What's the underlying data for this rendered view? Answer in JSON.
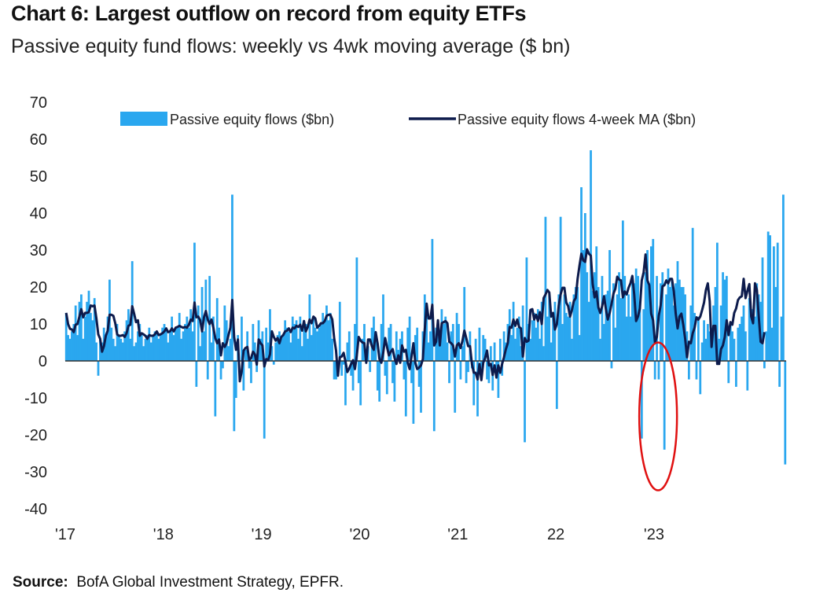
{
  "chart_data": {
    "type": "bar",
    "title": "Chart 6: Largest outflow on record from equity ETFs",
    "subtitle": "Passive equity fund flows: weekly vs 4wk moving average ($ bn)",
    "xlabel": "",
    "ylabel": "",
    "ylim": [
      -40,
      70
    ],
    "yticks": [
      70,
      60,
      50,
      40,
      30,
      20,
      10,
      0,
      -10,
      -20,
      -30,
      -40
    ],
    "xticks": [
      {
        "label": "'17",
        "year": 2017
      },
      {
        "label": "'18",
        "year": 2018
      },
      {
        "label": "'19",
        "year": 2019
      },
      {
        "label": "'20",
        "year": 2020
      },
      {
        "label": "'21",
        "year": 2021
      },
      {
        "label": "22",
        "year": 2022
      },
      {
        "label": "'23",
        "year": 2023
      }
    ],
    "x_start_year": 2017,
    "weeks_per_year": 52,
    "legend": {
      "position": "top",
      "bar_series": "Passive equity flows ($bn)",
      "line_series": "Passive equity flows 4-week MA ($bn)"
    },
    "colors": {
      "bars": "#2aa7ef",
      "line": "#0d1b4c",
      "highlight": "#e01010",
      "axis": "#333333"
    },
    "annotation": {
      "type": "ellipse",
      "description": "highlight",
      "week": 312,
      "value_center": -15,
      "value_halfrange": 20
    },
    "series": [
      {
        "name": "Passive equity flows ($bn)",
        "kind": "bar",
        "values": [
          13,
          7,
          6,
          8,
          10,
          15,
          7,
          16,
          18,
          6,
          12,
          16,
          19,
          13,
          11,
          17,
          5,
          -4,
          6,
          5,
          9,
          7,
          12,
          22,
          9,
          6,
          4,
          10,
          7,
          6,
          5,
          8,
          11,
          14,
          6,
          27,
          4,
          5,
          8,
          10,
          7,
          4,
          6,
          7,
          9,
          5,
          7,
          8,
          8,
          6,
          7,
          9,
          10,
          9,
          5,
          8,
          12,
          7,
          9,
          9,
          13,
          6,
          8,
          10,
          12,
          9,
          14,
          8,
          32,
          -7,
          15,
          4,
          20,
          8,
          22,
          -5,
          23,
          5,
          12,
          -15,
          17,
          9,
          -5,
          -2,
          15,
          11,
          4,
          6,
          45,
          -19,
          -10,
          7,
          0,
          12,
          -8,
          3,
          8,
          -2,
          -6,
          10,
          5,
          -3,
          11,
          6,
          8,
          -21,
          9,
          5,
          14,
          4,
          -1,
          5,
          7,
          8,
          6,
          7,
          11,
          9,
          8,
          5,
          12,
          10,
          11,
          6,
          12,
          4,
          11,
          10,
          6,
          18,
          7,
          12,
          9,
          8,
          9,
          10,
          13,
          11,
          15,
          11,
          13,
          6,
          -5,
          -5,
          -2,
          16,
          -4,
          -1,
          -12,
          5,
          8,
          -4,
          -8,
          10,
          28,
          -6,
          -12,
          6,
          10,
          3,
          4,
          -3,
          9,
          12,
          7,
          -8,
          -11,
          10,
          18,
          -4,
          -9,
          9,
          10,
          -6,
          -11,
          8,
          3,
          6,
          8,
          -5,
          -15,
          9,
          12,
          -6,
          -17,
          7,
          9,
          -7,
          -14,
          8,
          18,
          15,
          5,
          8,
          33,
          -19,
          9,
          11,
          7,
          14,
          10,
          12,
          5,
          -6,
          8,
          10,
          -14,
          13,
          10,
          -5,
          4,
          20,
          -6,
          -3,
          8,
          -2,
          -12,
          6,
          -15,
          9,
          -3,
          7,
          6,
          -5,
          -6,
          4,
          -8,
          5,
          -4,
          -10,
          6,
          -4,
          8,
          5,
          10,
          14,
          7,
          16,
          6,
          9,
          12,
          4,
          15,
          -22,
          28,
          10,
          6,
          11,
          13,
          9,
          14,
          6,
          16,
          4,
          39,
          12,
          18,
          5,
          13,
          16,
          -13,
          18,
          39,
          10,
          18,
          13,
          12,
          16,
          6,
          18,
          20,
          20,
          7,
          47,
          30,
          40,
          24,
          16,
          57,
          19,
          24,
          31,
          20,
          6,
          23,
          10,
          18,
          19,
          30,
          -2,
          21,
          9,
          18,
          24,
          17,
          38,
          23,
          12,
          18,
          12,
          23,
          21,
          25,
          23,
          15,
          -21,
          14,
          24,
          30,
          21,
          31,
          33,
          -5,
          23,
          -5,
          21,
          24,
          -24,
          18,
          25,
          20,
          22,
          15,
          21,
          27,
          22,
          20,
          20,
          18,
          8,
          -5,
          15,
          36,
          13,
          -5,
          12,
          -9,
          5,
          11,
          6,
          10,
          8,
          8,
          15,
          20,
          32,
          6,
          15,
          24,
          22,
          23,
          -6,
          10,
          8,
          6,
          -7,
          9,
          10,
          12,
          15,
          8,
          -8,
          17,
          14,
          14,
          12,
          21,
          18,
          16,
          28,
          -2,
          8,
          35,
          34,
          9,
          31,
          20,
          32,
          -7,
          12,
          45,
          -28
        ]
      },
      {
        "name": "Passive equity flows 4-week MA ($bn)",
        "kind": "line",
        "values": [
          13.0,
          10.0,
          8.7,
          8.5,
          7.8,
          9.8,
          10.0,
          12.0,
          14.0,
          11.8,
          13.0,
          13.0,
          13.2,
          15.0,
          14.8,
          15.0,
          11.5,
          7.2,
          6.0,
          2.5,
          4.0,
          6.8,
          8.2,
          12.5,
          12.5,
          12.2,
          10.2,
          7.2,
          6.8,
          6.8,
          7.0,
          6.5,
          7.5,
          9.5,
          9.8,
          14.8,
          12.8,
          10.5,
          11.0,
          6.8,
          7.5,
          7.2,
          6.8,
          6.0,
          7.0,
          6.8,
          6.8,
          7.2,
          8.0,
          7.0,
          7.2,
          7.5,
          8.0,
          8.8,
          7.8,
          8.0,
          8.8,
          8.0,
          9.0,
          9.2,
          9.5,
          9.2,
          9.0,
          9.2,
          9.0,
          9.8,
          11.2,
          10.8,
          15.8,
          11.8,
          12.0,
          11.0,
          8.0,
          11.8,
          13.5,
          11.2,
          10.0,
          11.2,
          9.0,
          6.2,
          4.8,
          5.8,
          1.5,
          4.8,
          3.8,
          4.8,
          7.0,
          9.0,
          16.5,
          6.5,
          3.0,
          5.8,
          -5.5,
          -2.8,
          2.8,
          3.5,
          3.8,
          0.2,
          0.8,
          2.5,
          1.8,
          -1.0,
          5.8,
          4.8,
          4.2,
          -1.5,
          0.5,
          0.2,
          1.8,
          8.0,
          6.5,
          5.5,
          6.2,
          4.8,
          6.5,
          7.0,
          8.0,
          8.2,
          8.8,
          7.8,
          9.0,
          8.8,
          9.5,
          9.2,
          9.8,
          8.2,
          10.8,
          8.0,
          9.2,
          11.2,
          10.2,
          12.0,
          11.5,
          9.0,
          9.5,
          10.2,
          10.2,
          10.8,
          12.2,
          12.5,
          12.5,
          11.2,
          6.2,
          2.8,
          -4.0,
          1.0,
          1.2,
          2.2,
          -0.2,
          -3.0,
          -2.0,
          -0.8,
          0.2,
          -2.2,
          1.5,
          6.5,
          5.5,
          5.0,
          4.8,
          -0.5,
          5.8,
          5.8,
          4.0,
          3.0,
          7.8,
          4.8,
          0.5,
          -0.5,
          2.2,
          6.2,
          3.8,
          1.5,
          2.5,
          3.2,
          0.8,
          -0.8,
          1.5,
          -0.5,
          4.2,
          2.5,
          3.0,
          -0.5,
          -2.2,
          1.2,
          4.8,
          -0.5,
          -2.2,
          -1.8,
          -1.2,
          0.5,
          8.5,
          15.5,
          11.5,
          11.5,
          15.2,
          4.2,
          5.2,
          11.0,
          4.2,
          10.2,
          10.5,
          10.8,
          10.2,
          5.2,
          4.8,
          4.2,
          1.2,
          4.2,
          4.8,
          3.5,
          5.5,
          8.2,
          6.2,
          4.0,
          4.0,
          -0.8,
          -3.2,
          -3.2,
          -5.0,
          -0.8,
          -5.2,
          -0.5,
          0.8,
          2.8,
          -1.2,
          -0.8,
          -3.8,
          -1.2,
          -4.5,
          -1.2,
          -3.2,
          -0.8,
          1.0,
          3.2,
          4.8,
          9.2,
          9.0,
          11.2,
          9.5,
          11.2,
          9.2,
          8.8,
          1.2,
          6.2,
          5.2,
          5.5,
          13.8,
          14.0,
          11.2,
          12.5,
          10.8,
          13.2,
          10.0,
          17.0,
          18.0,
          19.2,
          18.5,
          12.0,
          13.0,
          8.5,
          10.0,
          15.0,
          18.0,
          19.8,
          19.8,
          15.8,
          14.8,
          12.0,
          13.8,
          16.2,
          17.0,
          22.2,
          25.8,
          29.0,
          27.2,
          26.8,
          30.2,
          29.0,
          28.5,
          20.8,
          17.2,
          18.8,
          14.5,
          13.0,
          14.8,
          17.5,
          14.0,
          11.2,
          13.0,
          15.5,
          18.2,
          19.5,
          22.8,
          22.0,
          21.8,
          17.2,
          18.8,
          18.0,
          19.8,
          21.0,
          23.0,
          18.0,
          10.8,
          12.0,
          14.2,
          21.8,
          24.0,
          28.8,
          21.8,
          20.5,
          12.8,
          11.0,
          5.0,
          6.5,
          12.2,
          15.0,
          20.2,
          20.5,
          21.8,
          21.0,
          22.2,
          22.2,
          18.8,
          12.8,
          8.8,
          12.0,
          12.8,
          9.8,
          6.0,
          1.0,
          5.2,
          4.8,
          7.5,
          9.0,
          11.8,
          11.2,
          12.0,
          13.8,
          15.8,
          19.2,
          21.0,
          16.2,
          3.8,
          9.5,
          9.5,
          -0.8,
          -0.8,
          3.2,
          4.2,
          6.5,
          11.0,
          7.0,
          10.5,
          9.8,
          13.0,
          14.2,
          16.5,
          17.2,
          17.5,
          22.2,
          17.0,
          19.0,
          20.8,
          12.0,
          10.2,
          21.0,
          19.2,
          12.0,
          5.2,
          4.8,
          7.8
        ]
      }
    ]
  },
  "source": {
    "label": "Source:",
    "text": "BofA Global Investment Strategy, EPFR."
  }
}
